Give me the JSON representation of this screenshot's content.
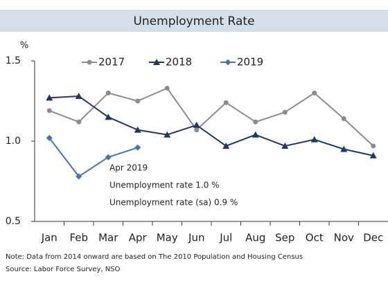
{
  "chart_data": {
    "type": "line",
    "title": "Unemployment Rate",
    "ylabel": "%",
    "categories": [
      "Jan",
      "Feb",
      "Mar",
      "Apr",
      "May",
      "Jun",
      "Jul",
      "Aug",
      "Sep",
      "Oct",
      "Nov",
      "Dec"
    ],
    "series": [
      {
        "name": "2017",
        "color": "#8c8c8c",
        "marker": "circle",
        "values": [
          1.19,
          1.12,
          1.3,
          1.25,
          1.33,
          1.07,
          1.24,
          1.12,
          1.18,
          1.3,
          1.14,
          0.97
        ]
      },
      {
        "name": "2018",
        "color": "#1f3864",
        "marker": "triangle",
        "values": [
          1.27,
          1.28,
          1.15,
          1.07,
          1.04,
          1.1,
          0.97,
          1.04,
          0.97,
          1.01,
          0.95,
          0.91
        ]
      },
      {
        "name": "2019",
        "color": "#4a72b0",
        "marker": "diamond",
        "values": [
          1.02,
          0.78,
          0.9,
          0.96,
          null,
          null,
          null,
          null,
          null,
          null,
          null,
          null
        ]
      }
    ],
    "ylim": [
      0.5,
      1.5
    ],
    "yticks": [
      0.5,
      {
        "value": 1,
        "label": "1.0"
      },
      1.5
    ],
    "grid": false,
    "legend": "top",
    "annotations": [
      "Apr 2019",
      "Unemployment rate 1.0 %",
      "Unemployment rate (sa) 0.9 %"
    ],
    "notes": [
      "Note: Data from 2014 onward are based on The 2010 Population and Housing Census",
      "Source: Labor Force Survey, NSO"
    ]
  }
}
